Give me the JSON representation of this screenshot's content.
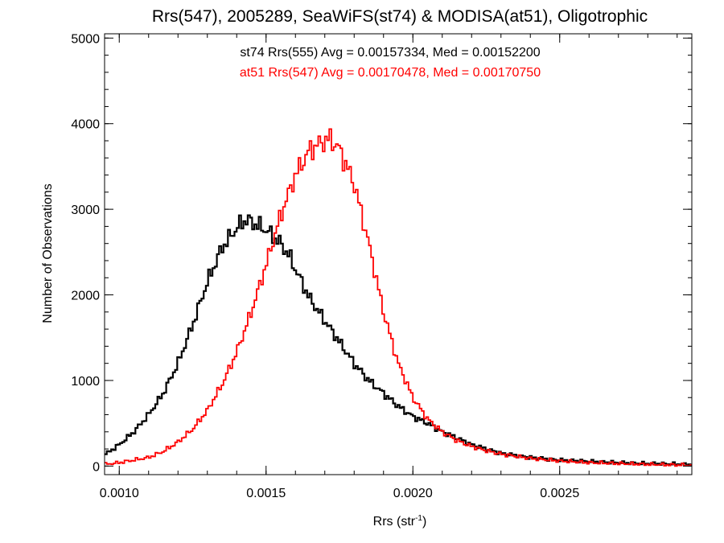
{
  "chart_data": {
    "type": "line",
    "title": "Rrs(547), 2005289, SeaWiFS(st74) & MODISA(at51), Oligotrophic",
    "xlabel": "Rrs (str",
    "xlabel_sup": "-1",
    "xlabel_suffix": ")",
    "ylabel": "Number of Observations",
    "xlim": [
      0.00095,
      0.00295
    ],
    "ylim": [
      -100,
      5050
    ],
    "xticks": [
      0.001,
      0.0015,
      0.002,
      0.0025
    ],
    "xtick_labels": [
      "0.0010",
      "0.0015",
      "0.0020",
      "0.0025"
    ],
    "yticks": [
      0,
      1000,
      2000,
      3000,
      4000,
      5000
    ],
    "ytick_labels": [
      "0",
      "1000",
      "2000",
      "3000",
      "4000",
      "5000"
    ],
    "annotations": [
      {
        "text": "st74 Rrs(555) Avg = 0.00157334, Med = 0.00152200",
        "color": "#000000"
      },
      {
        "text": "at51 Rrs(547) Avg = 0.00170478, Med = 0.00170750",
        "color": "#ff0000"
      }
    ],
    "series": [
      {
        "color": "#000000",
        "x": [
          0.00095,
          0.001,
          0.00105,
          0.0011,
          0.00115,
          0.0012,
          0.00125,
          0.0013,
          0.00135,
          0.0014,
          0.00143,
          0.00145,
          0.0015,
          0.00155,
          0.00158,
          0.0016,
          0.00165,
          0.0017,
          0.00175,
          0.0018,
          0.00185,
          0.0019,
          0.00195,
          0.002,
          0.00205,
          0.0021,
          0.00215,
          0.0022,
          0.00225,
          0.0023,
          0.0024,
          0.0025,
          0.0026,
          0.0027,
          0.0028,
          0.00295
        ],
        "y": [
          130,
          250,
          400,
          600,
          850,
          1200,
          1650,
          2150,
          2550,
          2780,
          2880,
          2850,
          2760,
          2600,
          2450,
          2300,
          1950,
          1700,
          1450,
          1200,
          1000,
          850,
          700,
          580,
          500,
          400,
          330,
          250,
          200,
          150,
          100,
          70,
          55,
          40,
          30,
          20
        ]
      },
      {
        "color": "#ff0000",
        "x": [
          0.00095,
          0.001,
          0.0011,
          0.00115,
          0.0012,
          0.00125,
          0.0013,
          0.00135,
          0.0014,
          0.00145,
          0.0015,
          0.00155,
          0.0016,
          0.00165,
          0.0017,
          0.00172,
          0.00175,
          0.0018,
          0.00185,
          0.0019,
          0.00195,
          0.002,
          0.00205,
          0.0021,
          0.00215,
          0.0022,
          0.00225,
          0.0023,
          0.0024,
          0.0025,
          0.0026,
          0.0028,
          0.00295
        ],
        "y": [
          20,
          40,
          100,
          170,
          280,
          430,
          650,
          950,
          1330,
          1800,
          2350,
          2930,
          3400,
          3700,
          3800,
          3820,
          3700,
          3300,
          2600,
          1800,
          1200,
          800,
          550,
          400,
          300,
          230,
          180,
          140,
          90,
          60,
          40,
          20,
          10
        ]
      }
    ]
  }
}
